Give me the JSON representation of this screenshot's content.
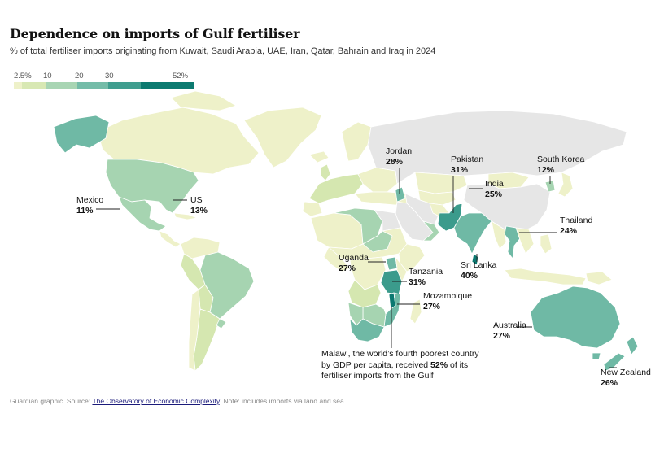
{
  "title": "Dependence on imports of Gulf fertiliser",
  "subtitle": "% of total fertiliser imports originating from Kuwait, Saudi Arabia, UAE, Iran, Qatar, Bahrain and Iraq in 2024",
  "legend": {
    "labels": [
      "2.5%",
      "10",
      "20",
      "30",
      "52%"
    ],
    "colors": [
      "#eef1c9",
      "#d8e8b3",
      "#a8d5b3",
      "#74bca8",
      "#3f9e8f",
      "#0c7a70"
    ]
  },
  "palette": {
    "nodata": "#e6e6e6",
    "c1": "#eef1c9",
    "c2": "#d5e7b0",
    "c3": "#a6d4b1",
    "c4": "#6fb9a5",
    "c5": "#3b9b8c",
    "c6": "#0b7870",
    "line": "#222222"
  },
  "annotations": {
    "mexico": {
      "name": "Mexico",
      "value": "11%"
    },
    "us": {
      "name": "US",
      "value": "13%"
    },
    "jordan": {
      "name": "Jordan",
      "value": "28%"
    },
    "pakistan": {
      "name": "Pakistan",
      "value": "31%"
    },
    "india": {
      "name": "India",
      "value": "25%"
    },
    "south_korea": {
      "name": "South Korea",
      "value": "12%"
    },
    "thailand": {
      "name": "Thailand",
      "value": "24%"
    },
    "sri_lanka": {
      "name": "Sri Lanka",
      "value": "40%"
    },
    "uganda": {
      "name": "Uganda",
      "value": "27%"
    },
    "tanzania": {
      "name": "Tanzania",
      "value": "31%"
    },
    "mozambique": {
      "name": "Mozambique",
      "value": "27%"
    },
    "australia": {
      "name": "Australia",
      "value": "27%"
    },
    "new_zealand": {
      "name": "New Zealand",
      "value": "26%"
    },
    "malawi": {
      "text_before": "Malawi, the world’s fourth poorest country by GDP per capita, received ",
      "value": "52%",
      "text_after": " of its fertiliser imports from the Gulf"
    }
  },
  "footer": {
    "prefix": "Guardian graphic. Source: ",
    "source_link": "The Observatory of Economic Complexity",
    "suffix": ". Note: includes imports via land and sea"
  }
}
